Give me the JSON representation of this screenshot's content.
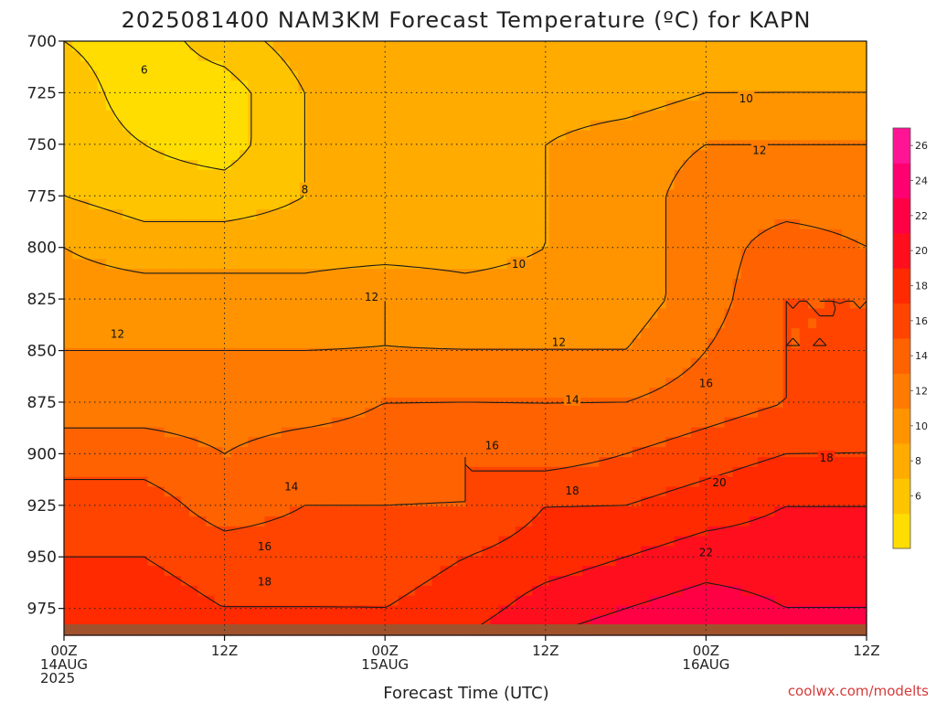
{
  "colors": {
    "background": "#ffffff",
    "ground": "#a0522d",
    "contour_line": "#1a1a1a",
    "credit": "#d63a3a"
  },
  "chart_data": {
    "type": "heatmap",
    "title": "2025081400 NAM3KM Forecast Temperature (ºC) for KAPN",
    "xlabel": "Forecast Time (UTC)",
    "ylabel": "",
    "credit": "coolwx.com/modelts",
    "x_hours": [
      0,
      6,
      12,
      18,
      24,
      30,
      36,
      42,
      48,
      54,
      60
    ],
    "xlim": [
      0,
      60
    ],
    "x_ticks": [
      {
        "hour": 0,
        "lines": [
          "00Z",
          "14AUG",
          "2025"
        ]
      },
      {
        "hour": 12,
        "lines": [
          "12Z"
        ]
      },
      {
        "hour": 24,
        "lines": [
          "00Z",
          "15AUG"
        ]
      },
      {
        "hour": 36,
        "lines": [
          "12Z"
        ]
      },
      {
        "hour": 48,
        "lines": [
          "00Z",
          "16AUG"
        ]
      },
      {
        "hour": 60,
        "lines": [
          "12Z"
        ]
      }
    ],
    "pressure_levels_hpa": [
      700,
      725,
      750,
      775,
      800,
      825,
      850,
      875,
      900,
      925,
      950,
      975,
      988
    ],
    "ylim": [
      700,
      988
    ],
    "y_ticks": [
      700,
      725,
      750,
      775,
      800,
      825,
      850,
      875,
      900,
      925,
      950,
      975
    ],
    "y_axis_inverted": true,
    "ground_level_hpa": 988,
    "temperature_c": [
      [
        6,
        5,
        7,
        9,
        9,
        9,
        9,
        9,
        8,
        9,
        9
      ],
      [
        7,
        5,
        5,
        8,
        9,
        9,
        9,
        9,
        10,
        10,
        10
      ],
      [
        7,
        6,
        5,
        8,
        9,
        9,
        10,
        11,
        12,
        12,
        12
      ],
      [
        8,
        7,
        7,
        8,
        9,
        9,
        10,
        11,
        13,
        13,
        13
      ],
      [
        10,
        9,
        9,
        9,
        9,
        9,
        10,
        11,
        13,
        15,
        14
      ],
      [
        11,
        11,
        11,
        11,
        12,
        11,
        11,
        11,
        13,
        16,
        16
      ],
      [
        12,
        12,
        12,
        12,
        12,
        12,
        12,
        12,
        14,
        16,
        16
      ],
      [
        13,
        13,
        13,
        13,
        14,
        14,
        14,
        14,
        15,
        16,
        17
      ],
      [
        15,
        15,
        14,
        15,
        15,
        16,
        15,
        16,
        17,
        18,
        18
      ],
      [
        17,
        17,
        15,
        16,
        16,
        16,
        18,
        18,
        19,
        20,
        20
      ],
      [
        18,
        18,
        17,
        17,
        17,
        18,
        19,
        20,
        21,
        21,
        21
      ],
      [
        19,
        19,
        18,
        18,
        18,
        19,
        21,
        22,
        23,
        22,
        22
      ],
      [
        20,
        20,
        20,
        20,
        19,
        20,
        22,
        23,
        24,
        23,
        23
      ]
    ],
    "contour_levels_c": [
      6,
      8,
      10,
      12,
      14,
      16,
      18,
      20,
      22
    ],
    "contour_labels": [
      {
        "text": "6",
        "hour": 6,
        "hpa": 714
      },
      {
        "text": "8",
        "hour": 18,
        "hpa": 772
      },
      {
        "text": "10",
        "hour": 34,
        "hpa": 808
      },
      {
        "text": "10",
        "hour": 51,
        "hpa": 728
      },
      {
        "text": "12",
        "hour": 4,
        "hpa": 842
      },
      {
        "text": "12",
        "hour": 23,
        "hpa": 824
      },
      {
        "text": "12",
        "hour": 37,
        "hpa": 846
      },
      {
        "text": "12",
        "hour": 52,
        "hpa": 753
      },
      {
        "text": "14",
        "hour": 17,
        "hpa": 916
      },
      {
        "text": "14",
        "hour": 38,
        "hpa": 874
      },
      {
        "text": "16",
        "hour": 15,
        "hpa": 945
      },
      {
        "text": "16",
        "hour": 32,
        "hpa": 896
      },
      {
        "text": "16",
        "hour": 48,
        "hpa": 866
      },
      {
        "text": "18",
        "hour": 15,
        "hpa": 962
      },
      {
        "text": "18",
        "hour": 38,
        "hpa": 918
      },
      {
        "text": "18",
        "hour": 57,
        "hpa": 902
      },
      {
        "text": "20",
        "hour": 49,
        "hpa": 914
      },
      {
        "text": "22",
        "hour": 48,
        "hpa": 948
      }
    ],
    "colorbar": {
      "labels": [
        "6",
        "8",
        "10",
        "12",
        "14",
        "16",
        "18",
        "20",
        "22",
        "24",
        "26"
      ],
      "bins": [
        {
          "min": 4,
          "max": 6,
          "color": "#ffdd00"
        },
        {
          "min": 6,
          "max": 8,
          "color": "#ffc400"
        },
        {
          "min": 8,
          "max": 10,
          "color": "#ffab00"
        },
        {
          "min": 10,
          "max": 12,
          "color": "#ff9400"
        },
        {
          "min": 12,
          "max": 14,
          "color": "#ff7a00"
        },
        {
          "min": 14,
          "max": 16,
          "color": "#ff6200"
        },
        {
          "min": 16,
          "max": 18,
          "color": "#ff4400"
        },
        {
          "min": 18,
          "max": 20,
          "color": "#ff2a00"
        },
        {
          "min": 20,
          "max": 22,
          "color": "#ff0f1e"
        },
        {
          "min": 22,
          "max": 24,
          "color": "#ff0045"
        },
        {
          "min": 24,
          "max": 26,
          "color": "#ff0070"
        },
        {
          "min": 26,
          "max": 28,
          "color": "#ff1493"
        }
      ]
    },
    "grid": true,
    "legend_position": "right"
  }
}
